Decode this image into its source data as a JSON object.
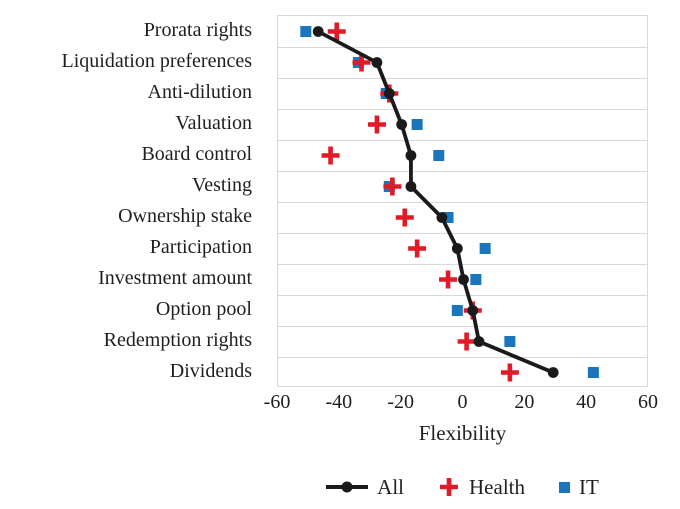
{
  "chart_data": {
    "type": "scatter",
    "title": "",
    "xlabel": "Flexibility",
    "ylabel": "",
    "xlim": [
      -60,
      60
    ],
    "xticks": [
      -60,
      -40,
      -20,
      0,
      20,
      40,
      60
    ],
    "grid": "horizontal",
    "legend_position": "bottom",
    "categories": [
      "Prorata rights",
      "Liquidation preferences",
      "Anti-dilution",
      "Valuation",
      "Board control",
      "Vesting",
      "Ownership stake",
      "Participation",
      "Investment amount",
      "Option pool",
      "Redemption rights",
      "Dividends"
    ],
    "series": [
      {
        "name": "All",
        "marker": "line-dot",
        "color": "#1a1a1a",
        "values": [
          -47,
          -28,
          -24,
          -20,
          -17,
          -17,
          -7,
          -2,
          0,
          3,
          5,
          29
        ]
      },
      {
        "name": "Health",
        "marker": "plus",
        "color": "#e01a27",
        "values": [
          -41,
          -33,
          -24,
          -28,
          -43,
          -23,
          -19,
          -15,
          -5,
          3,
          1,
          15
        ]
      },
      {
        "name": "IT",
        "marker": "square",
        "color": "#1b75bc",
        "values": [
          -51,
          -34,
          -25,
          -15,
          -8,
          -24,
          -5,
          7,
          4,
          -2,
          15,
          42
        ]
      }
    ],
    "colors": {
      "gridline": "#d9d9d9",
      "plot_border": "#d9d9d9",
      "text": "#1f1f1f",
      "background": "#ffffff"
    }
  }
}
